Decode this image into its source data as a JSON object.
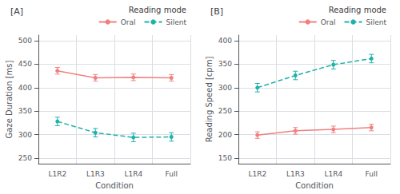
{
  "chart_data": [
    {
      "type": "line",
      "title": "[A]",
      "x_label": "Condition",
      "y_label": "Gaze Duration [ms]",
      "categories": [
        "L1R2",
        "L1R3",
        "L1R4",
        "Full"
      ],
      "series": [
        {
          "name": "Oral",
          "color": "#F08080",
          "values": [
            436,
            421,
            422,
            421
          ],
          "error": [
            7,
            7,
            7,
            7
          ],
          "line_style": "solid",
          "marker": "circle"
        },
        {
          "name": "Silent",
          "color": "#20B2AA",
          "values": [
            328,
            304,
            294,
            295
          ],
          "error": [
            9,
            9,
            9,
            9
          ],
          "line_style": "dashed",
          "marker": "circle"
        }
      ],
      "ylim": [
        238,
        512
      ],
      "yticks": [
        250,
        300,
        350,
        400,
        450,
        500
      ],
      "grid": true,
      "legend": "upper right",
      "legend_title": "Reading mode"
    },
    {
      "type": "line",
      "title": "[B]",
      "x_label": "Condition",
      "y_label": "Reading Speed [cpm]",
      "categories": [
        "L1R2",
        "L1R3",
        "L1R4",
        "Full"
      ],
      "series": [
        {
          "name": "Oral",
          "color": "#F08080",
          "values": [
            199,
            208,
            211,
            215
          ],
          "error": [
            7,
            7,
            7,
            7
          ],
          "line_style": "solid",
          "marker": "circle"
        },
        {
          "name": "Silent",
          "color": "#20B2AA",
          "values": [
            300,
            326,
            349,
            362
          ],
          "error": [
            9,
            9,
            9,
            9
          ],
          "line_style": "dashed",
          "marker": "circle"
        }
      ],
      "ylim": [
        138,
        412
      ],
      "yticks": [
        150,
        200,
        250,
        300,
        350,
        400
      ],
      "grid": true,
      "legend": "upper right",
      "legend_title": "Reading mode"
    }
  ]
}
